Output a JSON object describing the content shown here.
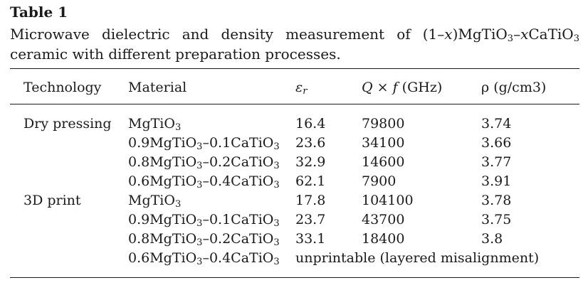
{
  "table_label": "Table 1",
  "caption": {
    "words_line1": [
      "Microwave",
      "dielectric",
      "and",
      "density",
      "measurement",
      "of"
    ],
    "formula": {
      "p1": "(1–",
      "x": "x",
      "p2": ")MgTiO",
      "s1": "3",
      "p3": "–",
      "x2": "x",
      "p4": "CaTiO",
      "s2": "3"
    },
    "line2": "ceramic with different preparation processes."
  },
  "headers": {
    "technology": "Technology",
    "material": "Material",
    "er_base": "ε",
    "er_sub": "r",
    "qf_q": "Q",
    "qf_times": " × ",
    "qf_f": "f",
    "qf_unit": " (GHz)",
    "rho": "ρ (g/cm3)"
  },
  "rows": [
    {
      "technology": "Dry pressing",
      "m_a": "MgTiO",
      "m_a_sub": "3",
      "m_b": "",
      "m_b_sub": "",
      "er": "16.4",
      "qf": "79800",
      "rho": "3.74",
      "note": ""
    },
    {
      "technology": "",
      "m_a": "0.9MgTiO",
      "m_a_sub": "3",
      "m_b": "–0.1CaTiO",
      "m_b_sub": "3",
      "er": "23.6",
      "qf": "34100",
      "rho": "3.66",
      "note": ""
    },
    {
      "technology": "",
      "m_a": "0.8MgTiO",
      "m_a_sub": "3",
      "m_b": "–0.2CaTiO",
      "m_b_sub": "3",
      "er": "32.9",
      "qf": "14600",
      "rho": "3.77",
      "note": ""
    },
    {
      "technology": "",
      "m_a": "0.6MgTiO",
      "m_a_sub": "3",
      "m_b": "–0.4CaTiO",
      "m_b_sub": "3",
      "er": "62.1",
      "qf": "7900",
      "rho": "3.91",
      "note": ""
    },
    {
      "technology": "3D print",
      "m_a": "MgTiO",
      "m_a_sub": "3",
      "m_b": "",
      "m_b_sub": "",
      "er": "17.8",
      "qf": "104100",
      "rho": "3.78",
      "note": ""
    },
    {
      "technology": "",
      "m_a": "0.9MgTiO",
      "m_a_sub": "3",
      "m_b": "–0.1CaTiO",
      "m_b_sub": "3",
      "er": "23.7",
      "qf": "43700",
      "rho": "3.75",
      "note": ""
    },
    {
      "technology": "",
      "m_a": "0.8MgTiO",
      "m_a_sub": "3",
      "m_b": "–0.2CaTiO",
      "m_b_sub": "3",
      "er": "33.1",
      "qf": "18400",
      "rho": "3.8",
      "note": ""
    },
    {
      "technology": "",
      "m_a": "0.6MgTiO",
      "m_a_sub": "3",
      "m_b": "–0.4CaTiO",
      "m_b_sub": "3",
      "er": "",
      "qf": "",
      "rho": "",
      "note": "unprintable (layered misalignment)"
    }
  ]
}
